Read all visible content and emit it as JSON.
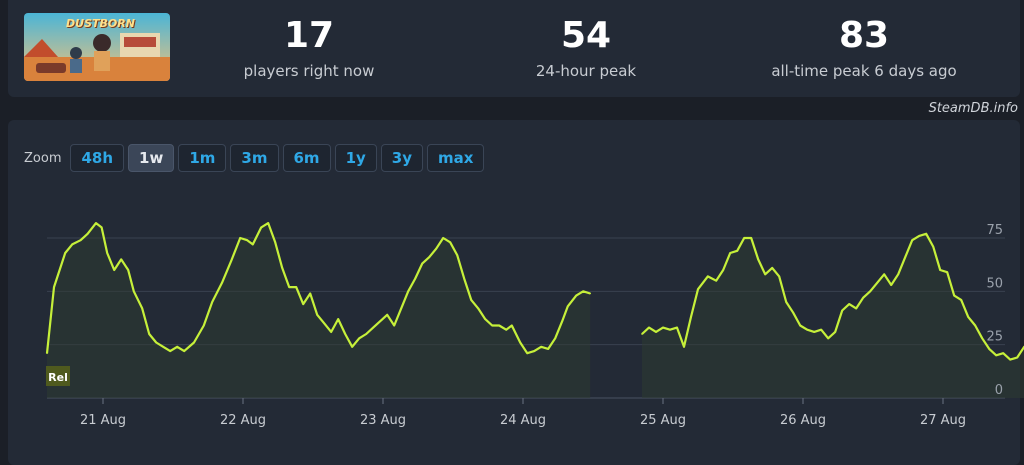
{
  "stats": [
    {
      "value": "17",
      "label": "players right now"
    },
    {
      "value": "54",
      "label": "24-hour peak"
    },
    {
      "value": "83",
      "label": "all-time peak 6 days ago"
    }
  ],
  "game": {
    "logo_text": "DUSTBORN"
  },
  "credit": "SteamDB.info",
  "zoom": {
    "label": "Zoom",
    "options": [
      "48h",
      "1w",
      "1m",
      "3m",
      "6m",
      "1y",
      "3y",
      "max"
    ],
    "active": "1w"
  },
  "colors": {
    "line": "#c6f03a",
    "grid": "#3a4250",
    "background": "#232a36"
  },
  "chart_data": {
    "type": "line",
    "title": "",
    "xlabel": "",
    "ylabel": "",
    "x_tick_labels": [
      "21 Aug",
      "22 Aug",
      "23 Aug",
      "24 Aug",
      "25 Aug",
      "26 Aug",
      "27 Aug"
    ],
    "y_ticks": [
      0,
      25,
      50,
      75
    ],
    "ylim": [
      0,
      90
    ],
    "x_unit": "days since start",
    "annotation": "Rel",
    "series": [
      {
        "name": "Players",
        "segments": [
          [
            [
              0.0,
              21
            ],
            [
              0.05,
              52
            ],
            [
              0.13,
              68
            ],
            [
              0.18,
              72
            ],
            [
              0.24,
              74
            ],
            [
              0.29,
              77
            ],
            [
              0.35,
              82
            ],
            [
              0.39,
              80
            ],
            [
              0.43,
              68
            ],
            [
              0.48,
              60
            ],
            [
              0.53,
              65
            ],
            [
              0.58,
              60
            ],
            [
              0.62,
              50
            ],
            [
              0.68,
              42
            ],
            [
              0.73,
              30
            ],
            [
              0.78,
              26
            ],
            [
              0.83,
              24
            ],
            [
              0.88,
              22
            ],
            [
              0.93,
              24
            ],
            [
              0.98,
              22
            ],
            [
              1.05,
              26
            ],
            [
              1.12,
              34
            ],
            [
              1.18,
              45
            ],
            [
              1.25,
              54
            ],
            [
              1.32,
              65
            ],
            [
              1.38,
              75
            ],
            [
              1.43,
              74
            ],
            [
              1.47,
              72
            ],
            [
              1.53,
              80
            ],
            [
              1.58,
              82
            ],
            [
              1.63,
              73
            ],
            [
              1.68,
              61
            ],
            [
              1.73,
              52
            ],
            [
              1.78,
              52
            ],
            [
              1.83,
              44
            ],
            [
              1.88,
              49
            ],
            [
              1.93,
              39
            ],
            [
              1.98,
              35
            ],
            [
              2.03,
              31
            ],
            [
              2.08,
              37
            ],
            [
              2.13,
              30
            ],
            [
              2.18,
              24
            ],
            [
              2.23,
              28
            ],
            [
              2.28,
              30
            ],
            [
              2.33,
              33
            ],
            [
              2.38,
              36
            ],
            [
              2.43,
              39
            ],
            [
              2.48,
              34
            ],
            [
              2.53,
              42
            ],
            [
              2.58,
              50
            ],
            [
              2.63,
              56
            ],
            [
              2.68,
              63
            ],
            [
              2.73,
              66
            ],
            [
              2.78,
              70
            ],
            [
              2.83,
              75
            ],
            [
              2.88,
              73
            ],
            [
              2.93,
              67
            ],
            [
              2.98,
              56
            ],
            [
              3.03,
              46
            ],
            [
              3.08,
              42
            ],
            [
              3.13,
              37
            ],
            [
              3.18,
              34
            ],
            [
              3.23,
              34
            ],
            [
              3.28,
              32
            ],
            [
              3.32,
              34
            ],
            [
              3.38,
              26
            ],
            [
              3.43,
              21
            ],
            [
              3.48,
              22
            ],
            [
              3.53,
              24
            ],
            [
              3.58,
              23
            ],
            [
              3.63,
              28
            ],
            [
              3.68,
              36
            ],
            [
              3.72,
              43
            ],
            [
              3.78,
              48
            ],
            [
              3.83,
              50
            ],
            [
              3.88,
              49
            ]
          ],
          [
            [
              4.25,
              30
            ],
            [
              4.3,
              33
            ],
            [
              4.35,
              31
            ],
            [
              4.4,
              33
            ],
            [
              4.45,
              32
            ],
            [
              4.5,
              33
            ],
            [
              4.55,
              24
            ],
            [
              4.6,
              38
            ],
            [
              4.65,
              51
            ],
            [
              4.72,
              57
            ],
            [
              4.78,
              55
            ],
            [
              4.83,
              60
            ],
            [
              4.88,
              68
            ],
            [
              4.93,
              69
            ],
            [
              4.98,
              75
            ],
            [
              5.03,
              75
            ],
            [
              5.08,
              65
            ],
            [
              5.13,
              58
            ],
            [
              5.18,
              61
            ],
            [
              5.23,
              57
            ],
            [
              5.28,
              45
            ],
            [
              5.33,
              40
            ],
            [
              5.38,
              34
            ],
            [
              5.43,
              32
            ],
            [
              5.48,
              31
            ],
            [
              5.53,
              32
            ],
            [
              5.58,
              28
            ],
            [
              5.63,
              31
            ],
            [
              5.68,
              41
            ],
            [
              5.73,
              44
            ],
            [
              5.78,
              42
            ],
            [
              5.83,
              47
            ],
            [
              5.88,
              50
            ],
            [
              5.93,
              54
            ],
            [
              5.98,
              58
            ],
            [
              6.03,
              53
            ],
            [
              6.08,
              58
            ],
            [
              6.13,
              66
            ],
            [
              6.18,
              74
            ],
            [
              6.23,
              76
            ],
            [
              6.28,
              77
            ],
            [
              6.33,
              71
            ],
            [
              6.38,
              60
            ],
            [
              6.43,
              59
            ],
            [
              6.48,
              48
            ],
            [
              6.53,
              46
            ],
            [
              6.58,
              38
            ],
            [
              6.63,
              34
            ],
            [
              6.68,
              28
            ],
            [
              6.73,
              23
            ],
            [
              6.78,
              20
            ],
            [
              6.83,
              21
            ],
            [
              6.88,
              18
            ],
            [
              6.93,
              19
            ],
            [
              6.98,
              24
            ],
            [
              7.03,
              25
            ],
            [
              7.08,
              28
            ],
            [
              7.13,
              34
            ],
            [
              7.18,
              44
            ],
            [
              7.23,
              47
            ],
            [
              7.28,
              49
            ],
            [
              7.33,
              51
            ],
            [
              7.38,
              52
            ],
            [
              7.43,
              51
            ],
            [
              7.48,
              43
            ],
            [
              7.53,
              40
            ],
            [
              7.58,
              44
            ],
            [
              7.63,
              34
            ],
            [
              7.68,
              33
            ],
            [
              7.73,
              30
            ],
            [
              7.78,
              24
            ],
            [
              7.83,
              23
            ],
            [
              7.88,
              18
            ],
            [
              7.93,
              15
            ],
            [
              7.98,
              20
            ],
            [
              8.03,
              18
            ]
          ]
        ]
      }
    ]
  }
}
